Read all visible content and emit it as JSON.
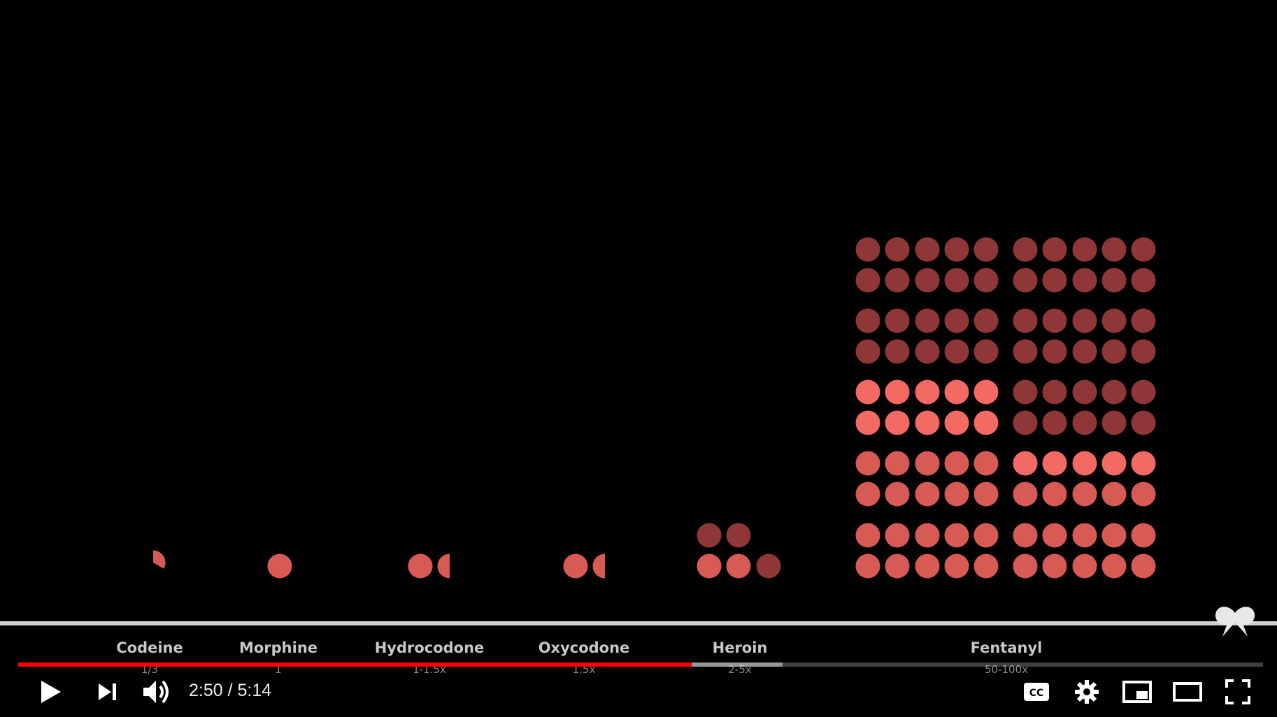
{
  "player": {
    "time_current": "2:50",
    "time_separator": "/",
    "time_total": "5:14",
    "progress_fraction": 0.541,
    "buffer_fraction": 0.614,
    "cc_label": "CC"
  },
  "colors": {
    "played": "#ff0000",
    "dot_bright": "#f26a63",
    "dot_mid": "#d85a55",
    "dot_dark": "#8f3636"
  },
  "drugs": [
    {
      "name": "Codeine",
      "potency": "1/3"
    },
    {
      "name": "Morphine",
      "potency": "1"
    },
    {
      "name": "Hydrocodone",
      "potency": "1-1.5x"
    },
    {
      "name": "Oxycodone",
      "potency": "1.5x"
    },
    {
      "name": "Heroin",
      "potency": "2-5x"
    },
    {
      "name": "Fentanyl",
      "potency": "50-100x"
    }
  ],
  "icons": [
    "play-icon",
    "next-icon",
    "volume-icon",
    "cc-icon",
    "settings-icon",
    "miniplayer-icon",
    "theater-icon",
    "fullscreen-icon",
    "watermark-logo"
  ]
}
